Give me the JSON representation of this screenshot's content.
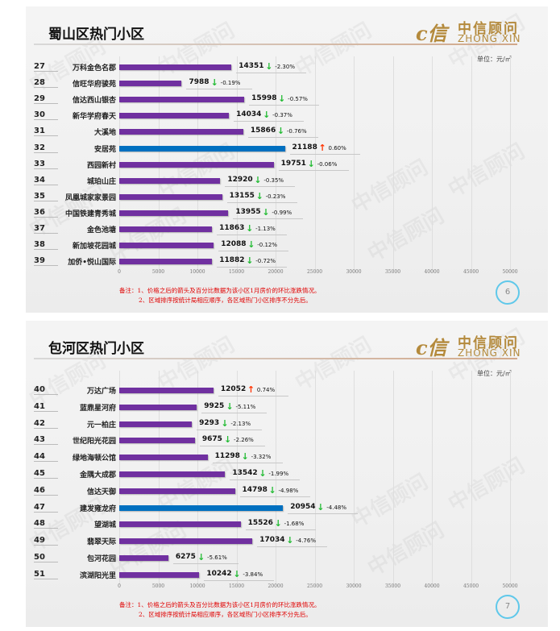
{
  "brand": {
    "logo_cn": "中信顾问",
    "logo_en": "ZHONG XIN",
    "watermark": "中信顾问"
  },
  "colors": {
    "bar": "#7030a0",
    "highlight_bar": "#0070c0",
    "down_arrow": "#22bb33",
    "up_arrow": "#ff3300",
    "note": "#e00000"
  },
  "chart_data": [
    {
      "type": "bar",
      "orientation": "horizontal",
      "title": "蜀山区热门小区",
      "unit": "单位：元/㎡",
      "xlim": [
        0,
        50000
      ],
      "xticks": [
        "0",
        "5000",
        "10000",
        "15000",
        "20000",
        "25000",
        "30000",
        "35000",
        "40000",
        "45000",
        "50000"
      ],
      "grid": true,
      "ranks": [
        "27",
        "28",
        "29",
        "30",
        "31",
        "32",
        "33",
        "34",
        "35",
        "36",
        "37",
        "38",
        "39"
      ],
      "categories": [
        "万科金色名郡",
        "信旺华府骏苑",
        "信达西山银杏",
        "新华学府春天",
        "大溪地",
        "安居苑",
        "西园新村",
        "城珀山庄",
        "凤凰城家家景园",
        "中国铁建青秀城",
        "金色池塘",
        "新加坡花园城",
        "加侨•悦山国际"
      ],
      "values": [
        14351,
        7988,
        15998,
        14034,
        15866,
        21188,
        19751,
        12920,
        13155,
        13955,
        11863,
        12088,
        11882
      ],
      "changes": [
        "-2.30%",
        "-0.19%",
        "-0.57%",
        "-0.37%",
        "-0.76%",
        "0.60%",
        "-0.06%",
        "-0.35%",
        "-0.23%",
        "-0.99%",
        "-1.13%",
        "-0.12%",
        "-0.72%"
      ],
      "highlight": [
        "安居苑"
      ],
      "notes": [
        "备注：1、价格之后的箭头及百分比数据为该小区1月房价的环比涨跌情况。",
        "2、区域排序按统计局相应顺序，各区域热门小区排序不分先后。"
      ],
      "page": "6"
    },
    {
      "type": "bar",
      "orientation": "horizontal",
      "title": "包河区热门小区",
      "unit": "单位：元/㎡",
      "xlim": [
        0,
        50000
      ],
      "xticks": [
        "0",
        "5000",
        "10000",
        "15000",
        "20000",
        "25000",
        "30000",
        "35000",
        "40000",
        "45000",
        "50000"
      ],
      "grid": true,
      "ranks": [
        "40",
        "41",
        "42",
        "43",
        "44",
        "45",
        "46",
        "47",
        "48",
        "49",
        "50",
        "51"
      ],
      "categories": [
        "万达广场",
        "蓝鼎星河府",
        "元一柏庄",
        "世纪阳光花园",
        "绿地海顿公馆",
        "金隅大成郡",
        "信达天御",
        "建发雍龙府",
        "望湖城",
        "翡翠天际",
        "包河花园",
        "滨湖阳光里"
      ],
      "values": [
        12052,
        9925,
        9293,
        9675,
        11298,
        13542,
        14798,
        20954,
        15526,
        17034,
        6275,
        10242
      ],
      "changes": [
        "0.74%",
        "-5.11%",
        "-2.13%",
        "-2.26%",
        "-3.32%",
        "-1.99%",
        "-4.98%",
        "-4.48%",
        "-1.68%",
        "-4.76%",
        "-5.61%",
        "-3.84%"
      ],
      "highlight": [
        "建发雍龙府"
      ],
      "notes": [
        "备注：1、价格之后的箭头及百分比数据为该小区1月房价的环比涨跌情况。",
        "2、区域排序按统计局相应顺序，各区域热门小区排序不分先后。"
      ],
      "page": "7"
    }
  ]
}
